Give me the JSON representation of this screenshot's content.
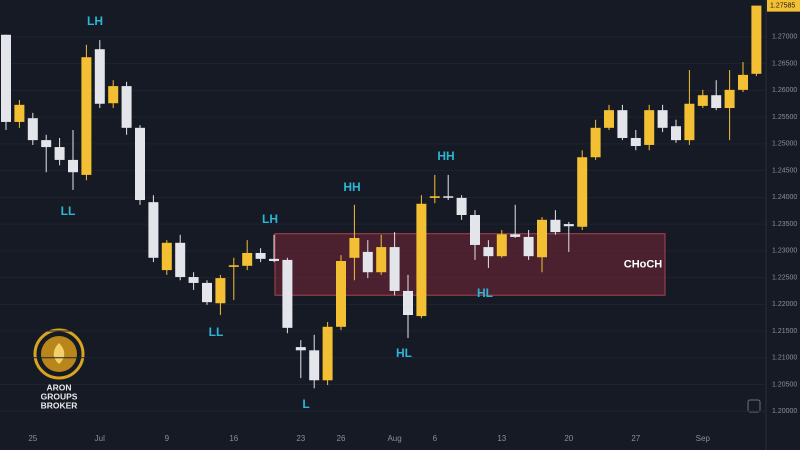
{
  "chart_data": {
    "type": "candlestick",
    "categories": [
      null,
      null,
      "25",
      null,
      null,
      null,
      null,
      "Jul",
      null,
      null,
      null,
      null,
      "9",
      null,
      null,
      null,
      null,
      "16",
      null,
      null,
      null,
      null,
      "23",
      null,
      null,
      "26",
      null,
      null,
      null,
      "Aug",
      null,
      null,
      "6",
      null,
      null,
      null,
      null,
      "13",
      null,
      null,
      null,
      null,
      "20",
      null,
      null,
      null,
      null,
      "27",
      null,
      null,
      null,
      null,
      "Sep",
      null,
      null,
      null,
      null
    ],
    "open": [
      1.2704,
      1.2541,
      1.2548,
      1.2507,
      1.2494,
      1.247,
      1.2442,
      1.2677,
      1.2576,
      1.2608,
      1.253,
      1.2391,
      1.2264,
      1.2315,
      1.2251,
      1.224,
      1.2202,
      1.227,
      1.2272,
      1.2296,
      1.2285,
      1.2283,
      1.212,
      1.2114,
      1.2058,
      1.2158,
      1.2287,
      1.2298,
      1.226,
      1.2307,
      1.2225,
      1.2178,
      1.2399,
      1.2402,
      1.2399,
      1.2367,
      1.2307,
      1.229,
      1.2331,
      1.2326,
      1.2288,
      1.2358,
      1.235,
      1.2345,
      1.2475,
      1.253,
      1.2563,
      1.2511,
      1.2498,
      1.2563,
      1.2533,
      1.2507,
      1.2571,
      1.2591,
      1.2567,
      1.2601,
      1.2631
    ],
    "high": [
      1.2704,
      1.2582,
      1.2558,
      1.2517,
      1.2511,
      1.2526,
      1.2685,
      1.2694,
      1.2619,
      1.2616,
      1.2535,
      1.2404,
      1.232,
      1.233,
      1.226,
      1.2245,
      1.2255,
      1.2287,
      1.232,
      1.2305,
      1.233,
      1.2287,
      1.2133,
      1.2143,
      1.2167,
      1.2292,
      1.2386,
      1.232,
      1.233,
      1.2335,
      1.2255,
      1.2404,
      1.2442,
      1.2442,
      1.2404,
      1.2376,
      1.232,
      1.2339,
      1.2386,
      1.2339,
      1.2363,
      1.2376,
      1.2354,
      1.2488,
      1.2545,
      1.2573,
      1.2573,
      1.2526,
      1.2573,
      1.2573,
      1.2545,
      1.2638,
      1.2601,
      1.2619,
      1.2638,
      1.2653,
      1.27585
    ],
    "low": [
      1.2526,
      1.253,
      1.2498,
      1.2447,
      1.246,
      1.2414,
      1.2432,
      1.2567,
      1.2567,
      1.2517,
      1.2386,
      1.2279,
      1.2255,
      1.2245,
      1.2227,
      1.2199,
      1.218,
      1.2208,
      1.2264,
      1.2279,
      1.2279,
      1.2146,
      1.2062,
      1.2043,
      1.2049,
      1.2152,
      1.2245,
      1.2249,
      1.2255,
      1.2217,
      1.2137,
      1.2174,
      1.2389,
      1.2395,
      1.2358,
      1.2283,
      1.2268,
      1.2287,
      1.2324,
      1.2283,
      1.226,
      1.233,
      1.2298,
      1.2339,
      1.247,
      1.2526,
      1.2507,
      1.2488,
      1.2488,
      1.2522,
      1.2502,
      1.2498,
      1.2567,
      1.2563,
      1.2507,
      1.2597,
      1.2627
    ],
    "close": [
      1.2541,
      1.2573,
      1.2507,
      1.2494,
      1.247,
      1.2447,
      1.2662,
      1.2575,
      1.2608,
      1.253,
      1.2395,
      1.2287,
      1.2315,
      1.2251,
      1.224,
      1.2204,
      1.2249,
      1.2273,
      1.2296,
      1.2285,
      1.2281,
      1.2156,
      1.2114,
      1.2058,
      1.2158,
      1.2281,
      1.2324,
      1.226,
      1.2307,
      1.2225,
      1.218,
      1.2388,
      1.2402,
      1.2401,
      1.2367,
      1.2311,
      1.229,
      1.2331,
      1.2326,
      1.229,
      1.2358,
      1.2335,
      1.2346,
      1.2475,
      1.253,
      1.2563,
      1.2511,
      1.2496,
      1.2563,
      1.253,
      1.2507,
      1.2575,
      1.2591,
      1.2567,
      1.2601,
      1.2629,
      1.27585
    ],
    "up_color": "#f4c033",
    "down_color": "#e3e5ea",
    "ylim": [
      1.1965,
      1.2769
    ],
    "yticks": [
      {
        "value": 1.2,
        "label": "1.20000"
      },
      {
        "value": 1.205,
        "label": "1.20500"
      },
      {
        "value": 1.21,
        "label": "1.21000"
      },
      {
        "value": 1.215,
        "label": "1.21500"
      },
      {
        "value": 1.22,
        "label": "1.22000"
      },
      {
        "value": 1.225,
        "label": "1.22500"
      },
      {
        "value": 1.23,
        "label": "1.23000"
      },
      {
        "value": 1.235,
        "label": "1.23500"
      },
      {
        "value": 1.24,
        "label": "1.24000"
      },
      {
        "value": 1.245,
        "label": "1.24500"
      },
      {
        "value": 1.25,
        "label": "1.25000"
      },
      {
        "value": 1.255,
        "label": "1.25500"
      },
      {
        "value": 1.26,
        "label": "1.26000"
      },
      {
        "value": 1.265,
        "label": "1.26500"
      },
      {
        "value": 1.27,
        "label": "1.27000"
      }
    ],
    "grid": true,
    "annotations": [
      "LH",
      "LL",
      "LH",
      "HH",
      "LL",
      "HH",
      "L",
      "HL",
      "HL"
    ],
    "zone": {
      "label": "CHoCH",
      "low": 1.2217,
      "high": 1.2332
    },
    "watermark": [
      "ARON",
      "GROUPS",
      "BROKER"
    ]
  }
}
